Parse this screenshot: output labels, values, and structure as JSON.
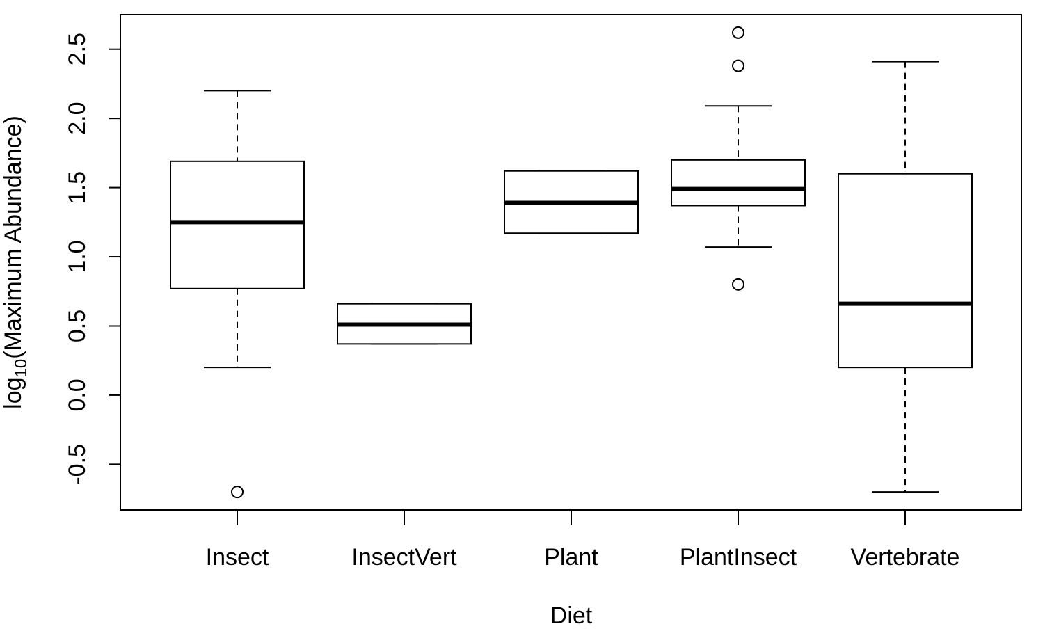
{
  "chart_data": {
    "type": "boxplot",
    "xlabel": "Diet",
    "ylabel": {
      "prefix": "log",
      "subscript": "10",
      "suffix": "(Maximum Abundance)"
    },
    "ylim": [
      -0.83,
      2.75
    ],
    "yticks": [
      -0.5,
      0.0,
      0.5,
      1.0,
      1.5,
      2.0,
      2.5
    ],
    "ytick_labels": [
      "-0.5",
      "0.0",
      "0.5",
      "1.0",
      "1.5",
      "2.0",
      "2.5"
    ],
    "categories": [
      "Insect",
      "InsectVert",
      "Plant",
      "PlantInsect",
      "Vertebrate"
    ],
    "boxes": [
      {
        "category": "Insect",
        "whisker_low": 0.2,
        "q1": 0.77,
        "median": 1.25,
        "q3": 1.69,
        "whisker_high": 2.2,
        "outliers": [
          -0.7
        ]
      },
      {
        "category": "InsectVert",
        "whisker_low": 0.37,
        "q1": 0.37,
        "median": 0.51,
        "q3": 0.66,
        "whisker_high": 0.66,
        "outliers": []
      },
      {
        "category": "Plant",
        "whisker_low": 1.17,
        "q1": 1.17,
        "median": 1.39,
        "q3": 1.62,
        "whisker_high": 1.62,
        "outliers": []
      },
      {
        "category": "PlantInsect",
        "whisker_low": 1.07,
        "q1": 1.37,
        "median": 1.49,
        "q3": 1.7,
        "whisker_high": 2.09,
        "outliers": [
          0.8,
          2.38,
          2.62
        ]
      },
      {
        "category": "Vertebrate",
        "whisker_low": -0.7,
        "q1": 0.2,
        "median": 0.66,
        "q3": 1.6,
        "whisker_high": 2.41,
        "outliers": []
      }
    ],
    "grid": false,
    "colors": {
      "stroke": "#000000",
      "background": "#ffffff"
    }
  }
}
